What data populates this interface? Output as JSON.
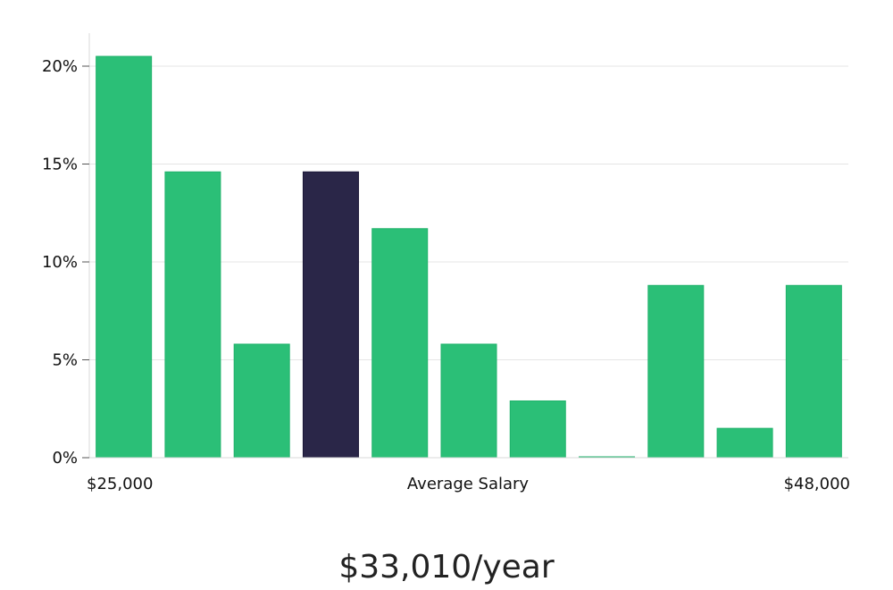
{
  "colors": {
    "bar": "#2bbf77",
    "highlight": "#2a2648",
    "grid": "#e5e5e5",
    "axis": "#d8d8d8",
    "text": "#111111"
  },
  "chart_data": {
    "type": "bar",
    "values": [
      20.5,
      14.6,
      5.8,
      14.6,
      11.7,
      5.8,
      2.9,
      0,
      8.8,
      1.5,
      8.8
    ],
    "highlight_index": 3,
    "ylim": [
      0,
      21.5
    ],
    "y_ticks": [
      0,
      5,
      10,
      15,
      20
    ],
    "y_tick_labels": [
      "0%",
      "5%",
      "10%",
      "15%",
      "20%"
    ],
    "x_start_label": "$25,000",
    "x_end_label": "$48,000",
    "xlabel": "Average Salary",
    "grid": true
  },
  "summary": {
    "salary": "$33,010/year"
  }
}
